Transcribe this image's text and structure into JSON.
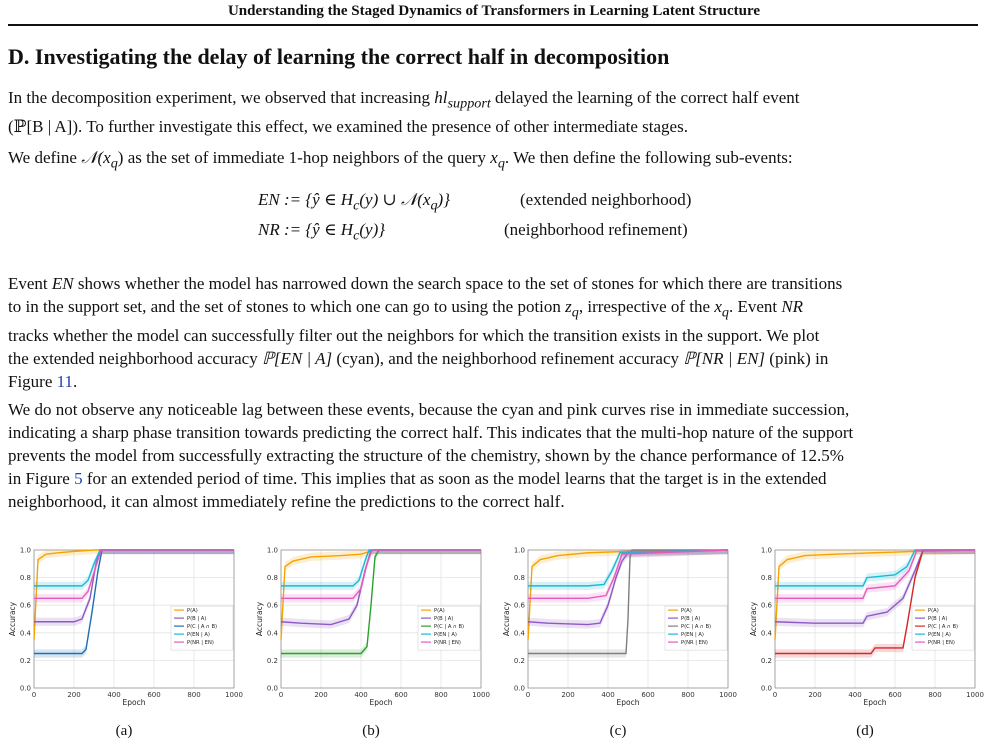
{
  "running_head": "Understanding the Staged Dynamics of Transformers in Learning Latent Structure",
  "section_title": "D. Investigating the delay of learning the correct half in decomposition",
  "p1": {
    "a": "In the decomposition experiment, we observed that increasing ",
    "sym1": "hl",
    "sub1": "support",
    "b": " delayed the learning of the correct half event",
    "c": "(ℙ[B | A]). To further investigate this effect, we examined the presence of other intermediate stages."
  },
  "p2": {
    "a": "We define ",
    "sym": "𝒩(x",
    "sub": "q",
    "b": ") as the set of immediate 1-hop neighbors of the query ",
    "x": "x",
    "xsub": "q",
    "c": ". We then define the following sub-events:"
  },
  "eq1": {
    "lhs": "EN := {ŷ ∈ H",
    "lhs_sub": "c",
    "rhs": "(y) ∪ 𝒩(x",
    "rhs_sub": "q",
    "end": ")}",
    "note": "(extended neighborhood)"
  },
  "eq2": {
    "lhs": "NR := {ŷ ∈ H",
    "lhs_sub": "c",
    "rhs": "(y)}",
    "note": "(neighborhood refinement)"
  },
  "p3": {
    "l1a": "Event ",
    "l1b": "EN",
    "l1c": " shows whether the model has narrowed down the search space to the set of stones for which there are transitions",
    "l2a": "to in the support set, and the set of stones to which one can go to using the potion ",
    "l2b": "z",
    "l2bs": "q",
    "l2c": ", irrespective of the ",
    "l2d": "x",
    "l2ds": "q",
    "l2e": ". Event ",
    "l2f": "NR",
    "l3": "tracks whether the model can successfully filter out the neighbors for which the transition exists in the support. We plot",
    "l4a": "the extended neighborhood accuracy ",
    "l4b": "ℙ[EN | A]",
    "l4c": " (cyan), and the neighborhood refinement accuracy ",
    "l4d": "ℙ[NR | EN]",
    "l4e": " (pink) in",
    "l5a": "Figure ",
    "l5b": "11",
    "l5c": "."
  },
  "p4": {
    "l1": "We do not observe any noticeable lag between these events, because the cyan and pink curves rise in immediate succession,",
    "l2": "indicating a sharp phase transition towards predicting the correct half. This indicates that the multi-hop nature of the support",
    "l3": "prevents the model from successfully extracting the structure of the chemistry, shown by the chance performance of 12.5%",
    "l4a": "in Figure ",
    "l4b": "5",
    "l4c": " for an extended period of time. This implies that as soon as the model learns that the target is in the extended",
    "l5": "neighborhood, it can almost immediately refine the predictions to the correct half."
  },
  "colors": {
    "orange": "#f5a300",
    "purple": "#8e59c4",
    "cyan": "#18b9d6",
    "pink": "#e45bbd",
    "blue": "#1f6fb4",
    "green": "#2ca02c",
    "gray": "#7f7f7f",
    "red": "#d62728"
  },
  "chart_data": [
    {
      "type": "line",
      "caption": "(a)",
      "xlabel": "Epoch",
      "ylabel": "Accuracy",
      "xlim": [
        0,
        1000
      ],
      "ylim": [
        0.0,
        1.0
      ],
      "xticks": [
        "0",
        "200",
        "400",
        "600",
        "800",
        "1000"
      ],
      "yticks": [
        "0.0",
        "0.2",
        "0.4",
        "0.6",
        "0.8",
        "1.0"
      ],
      "grid": true,
      "legend_position": "right",
      "series": [
        {
          "name": "P(A)",
          "color": "orange",
          "x": [
            0,
            20,
            60,
            120,
            200,
            300,
            450,
            1000
          ],
          "y": [
            0.35,
            0.93,
            0.97,
            0.98,
            0.99,
            1.0,
            1.0,
            1.0
          ]
        },
        {
          "name": "P(B | A)",
          "color": "purple",
          "x": [
            0,
            100,
            200,
            240,
            280,
            310,
            330,
            1000
          ],
          "y": [
            0.48,
            0.48,
            0.48,
            0.5,
            0.65,
            0.9,
            1.0,
            1.0
          ]
        },
        {
          "name": "P(C | A ∩ B)",
          "color": "blue",
          "x": [
            0,
            150,
            240,
            260,
            290,
            320,
            340,
            1000
          ],
          "y": [
            0.25,
            0.25,
            0.25,
            0.28,
            0.55,
            0.85,
            1.0,
            1.0
          ]
        },
        {
          "name": "P(EN | A)",
          "color": "cyan",
          "x": [
            0,
            150,
            240,
            270,
            300,
            330,
            1000
          ],
          "y": [
            0.74,
            0.74,
            0.74,
            0.78,
            0.9,
            1.0,
            1.0
          ]
        },
        {
          "name": "P(NR | EN)",
          "color": "pink",
          "x": [
            0,
            150,
            240,
            270,
            305,
            335,
            1000
          ],
          "y": [
            0.65,
            0.65,
            0.65,
            0.7,
            0.86,
            1.0,
            1.0
          ]
        }
      ]
    },
    {
      "type": "line",
      "caption": "(b)",
      "xlabel": "Epoch",
      "ylabel": "Accuracy",
      "xlim": [
        0,
        1000
      ],
      "ylim": [
        0.0,
        1.0
      ],
      "xticks": [
        "0",
        "200",
        "400",
        "600",
        "800",
        "1000"
      ],
      "yticks": [
        "0.0",
        "0.2",
        "0.4",
        "0.6",
        "0.8",
        "1.0"
      ],
      "grid": true,
      "legend_position": "right",
      "series": [
        {
          "name": "P(A)",
          "color": "orange",
          "x": [
            0,
            20,
            60,
            150,
            300,
            400,
            470,
            1000
          ],
          "y": [
            0.35,
            0.88,
            0.92,
            0.95,
            0.96,
            0.97,
            1.0,
            1.0
          ]
        },
        {
          "name": "P(B | A)",
          "color": "purple",
          "x": [
            0,
            100,
            250,
            340,
            380,
            420,
            450,
            1000
          ],
          "y": [
            0.48,
            0.47,
            0.46,
            0.5,
            0.6,
            0.85,
            1.0,
            1.0
          ]
        },
        {
          "name": "P(C | A ∩ B)",
          "color": "green",
          "x": [
            0,
            200,
            400,
            430,
            450,
            470,
            490,
            1000
          ],
          "y": [
            0.25,
            0.25,
            0.25,
            0.3,
            0.6,
            0.95,
            1.0,
            1.0
          ]
        },
        {
          "name": "P(EN | A)",
          "color": "cyan",
          "x": [
            0,
            200,
            360,
            390,
            420,
            440,
            1000
          ],
          "y": [
            0.74,
            0.74,
            0.74,
            0.78,
            0.92,
            1.0,
            1.0
          ]
        },
        {
          "name": "P(NR | EN)",
          "color": "pink",
          "x": [
            0,
            200,
            360,
            400,
            430,
            455,
            1000
          ],
          "y": [
            0.65,
            0.65,
            0.65,
            0.72,
            0.9,
            1.0,
            1.0
          ]
        }
      ]
    },
    {
      "type": "line",
      "caption": "(c)",
      "xlabel": "Epoch",
      "ylabel": "Accuracy",
      "xlim": [
        0,
        1000
      ],
      "ylim": [
        0.0,
        1.0
      ],
      "xticks": [
        "0",
        "200",
        "400",
        "600",
        "800",
        "1000"
      ],
      "yticks": [
        "0.0",
        "0.2",
        "0.4",
        "0.6",
        "0.8",
        "1.0"
      ],
      "grid": true,
      "legend_position": "right",
      "series": [
        {
          "name": "P(A)",
          "color": "orange",
          "x": [
            0,
            20,
            60,
            150,
            300,
            500,
            1000
          ],
          "y": [
            0.35,
            0.88,
            0.93,
            0.96,
            0.98,
            0.99,
            1.0
          ]
        },
        {
          "name": "P(B | A)",
          "color": "purple",
          "x": [
            0,
            100,
            300,
            360,
            400,
            440,
            470,
            500,
            1000
          ],
          "y": [
            0.48,
            0.47,
            0.46,
            0.47,
            0.6,
            0.8,
            0.92,
            0.98,
            1.0
          ]
        },
        {
          "name": "P(C | A ∩ B)",
          "color": "gray",
          "x": [
            0,
            300,
            490,
            500,
            510,
            520,
            1000
          ],
          "y": [
            0.25,
            0.25,
            0.25,
            0.5,
            0.95,
            1.0,
            1.0
          ]
        },
        {
          "name": "P(EN | A)",
          "color": "cyan",
          "x": [
            0,
            300,
            380,
            420,
            460,
            1000
          ],
          "y": [
            0.74,
            0.74,
            0.75,
            0.85,
            0.98,
            1.0
          ]
        },
        {
          "name": "P(NR | EN)",
          "color": "pink",
          "x": [
            0,
            300,
            390,
            430,
            470,
            1000
          ],
          "y": [
            0.65,
            0.65,
            0.67,
            0.8,
            0.97,
            1.0
          ]
        }
      ]
    },
    {
      "type": "line",
      "caption": "(d)",
      "xlabel": "Epoch",
      "ylabel": "Accuracy",
      "xlim": [
        0,
        1000
      ],
      "ylim": [
        0.0,
        1.0
      ],
      "xticks": [
        "0",
        "200",
        "400",
        "600",
        "800",
        "1000"
      ],
      "yticks": [
        "0.0",
        "0.2",
        "0.4",
        "0.6",
        "0.8",
        "1.0"
      ],
      "grid": true,
      "legend_position": "right",
      "series": [
        {
          "name": "P(A)",
          "color": "orange",
          "x": [
            0,
            20,
            60,
            150,
            300,
            500,
            700,
            1000
          ],
          "y": [
            0.35,
            0.88,
            0.93,
            0.96,
            0.97,
            0.98,
            0.99,
            1.0
          ]
        },
        {
          "name": "P(B | A)",
          "color": "purple",
          "x": [
            0,
            200,
            440,
            460,
            560,
            640,
            700,
            740,
            1000
          ],
          "y": [
            0.48,
            0.47,
            0.47,
            0.52,
            0.55,
            0.65,
            0.85,
            1.0,
            1.0
          ]
        },
        {
          "name": "P(C | A ∩ B)",
          "color": "red",
          "x": [
            0,
            480,
            500,
            640,
            660,
            700,
            740,
            1000
          ],
          "y": [
            0.25,
            0.25,
            0.29,
            0.29,
            0.45,
            0.8,
            1.0,
            1.0
          ]
        },
        {
          "name": "P(EN | A)",
          "color": "cyan",
          "x": [
            0,
            200,
            440,
            460,
            600,
            660,
            700,
            1000
          ],
          "y": [
            0.74,
            0.74,
            0.74,
            0.8,
            0.82,
            0.88,
            1.0,
            1.0
          ]
        },
        {
          "name": "P(NR | EN)",
          "color": "pink",
          "x": [
            0,
            200,
            440,
            460,
            600,
            670,
            710,
            1000
          ],
          "y": [
            0.65,
            0.65,
            0.65,
            0.72,
            0.74,
            0.85,
            1.0,
            1.0
          ]
        }
      ]
    }
  ]
}
